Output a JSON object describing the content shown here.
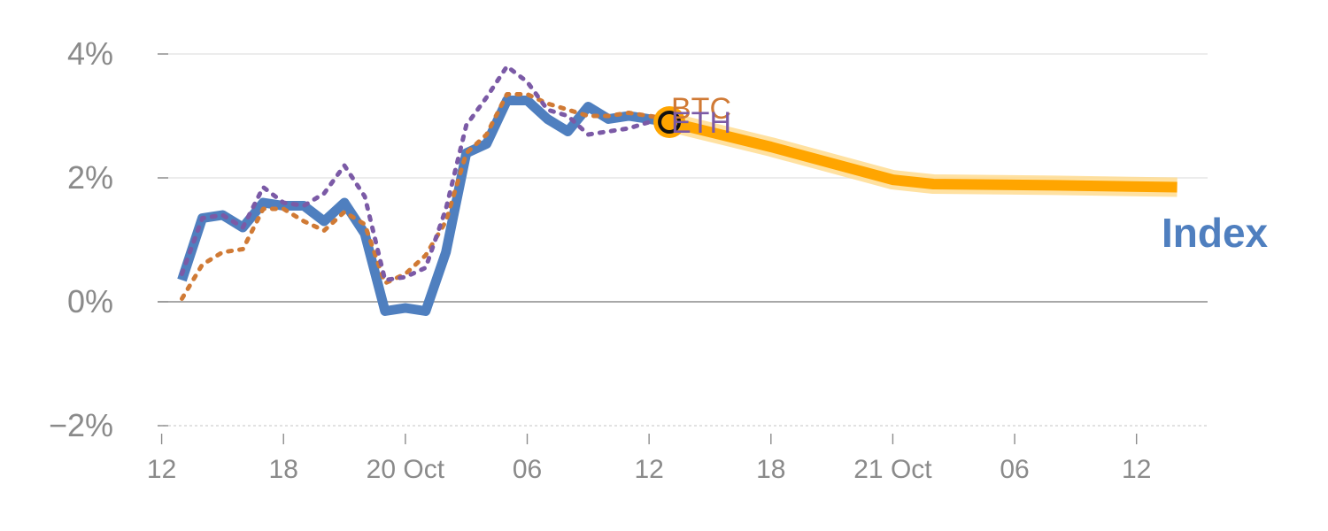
{
  "chart_data": {
    "type": "line",
    "x_ticks": [
      "12",
      "18",
      "20 Oct",
      "06",
      "12",
      "18",
      "21 Oct",
      "06",
      "12"
    ],
    "y_ticks": [
      "4%",
      "2%",
      "0%",
      "−2%"
    ],
    "y_tick_values": [
      4,
      2,
      0,
      -2
    ],
    "ylim": [
      -2.1,
      4.3
    ],
    "xlim": [
      -0.2,
      51.5
    ],
    "grid": true,
    "series": [
      {
        "name": "Index",
        "style": "solid-thick",
        "color": "#4f7fbf",
        "x": [
          1,
          2,
          3,
          4,
          5,
          6,
          7,
          8,
          9,
          10,
          11,
          12,
          13,
          14,
          15,
          16,
          17,
          18,
          19,
          20,
          21,
          22,
          23,
          24,
          25
        ],
        "values": [
          0.35,
          1.35,
          1.4,
          1.2,
          1.6,
          1.55,
          1.55,
          1.3,
          1.6,
          1.1,
          -0.15,
          -0.1,
          -0.15,
          0.8,
          2.4,
          2.55,
          3.25,
          3.25,
          2.95,
          2.75,
          3.15,
          2.95,
          3.0,
          2.95,
          2.9
        ]
      },
      {
        "name": "BTC",
        "style": "dotted",
        "color": "#d07a35",
        "x": [
          1,
          2,
          3,
          4,
          5,
          6,
          7,
          8,
          9,
          10,
          11,
          12,
          13,
          14,
          15,
          16,
          17,
          18,
          19,
          20,
          21,
          22,
          23,
          24,
          25
        ],
        "values": [
          0.05,
          0.6,
          0.8,
          0.85,
          1.5,
          1.5,
          1.3,
          1.15,
          1.45,
          1.25,
          0.3,
          0.45,
          0.75,
          1.3,
          2.4,
          2.7,
          3.35,
          3.35,
          3.2,
          3.1,
          3.0,
          3.0,
          3.05,
          3.0,
          2.95
        ]
      },
      {
        "name": "ETH",
        "style": "dotted",
        "color": "#7b5aa6",
        "x": [
          1,
          2,
          3,
          4,
          5,
          6,
          7,
          8,
          9,
          10,
          11,
          12,
          13,
          14,
          15,
          16,
          17,
          18,
          19,
          20,
          21,
          22,
          23,
          24,
          25
        ],
        "values": [
          0.45,
          1.35,
          1.4,
          1.2,
          1.85,
          1.6,
          1.55,
          1.75,
          2.2,
          1.7,
          0.35,
          0.4,
          0.55,
          1.5,
          2.85,
          3.3,
          3.8,
          3.55,
          3.1,
          3.0,
          2.7,
          2.75,
          2.8,
          2.9,
          2.9
        ]
      },
      {
        "name": "",
        "style": "projection",
        "color": "#ffa500",
        "x": [
          25,
          30,
          36,
          38,
          44,
          50
        ],
        "values": [
          2.9,
          2.5,
          1.97,
          1.9,
          1.88,
          1.85
        ]
      }
    ],
    "current_marker_x": 25,
    "current_marker_value": 2.9,
    "labels": {
      "btc": "BTC",
      "eth": "ETH",
      "index": "Index"
    }
  }
}
